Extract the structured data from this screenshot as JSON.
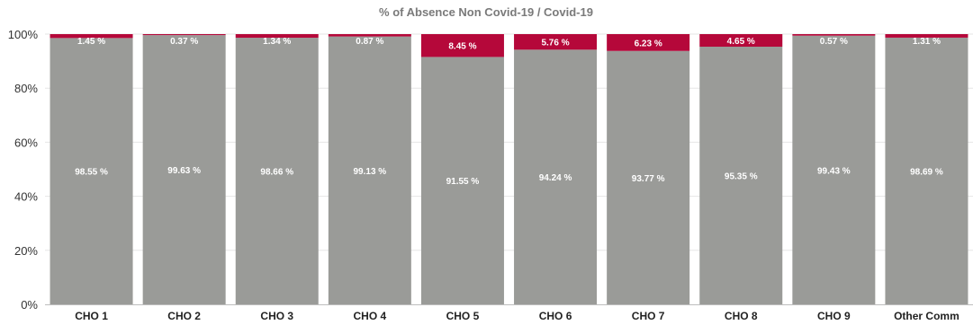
{
  "chart_data": {
    "type": "bar",
    "stacked": true,
    "title": "% of Absence Non Covid-19 / Covid-19",
    "xlabel": "",
    "ylabel": "",
    "ylim": [
      0,
      100
    ],
    "yticks": [
      "0%",
      "20%",
      "40%",
      "60%",
      "80%",
      "100%"
    ],
    "grid": true,
    "legend": "none",
    "categories": [
      "CHO 1",
      "CHO 2",
      "CHO 3",
      "CHO 4",
      "CHO 5",
      "CHO 6",
      "CHO 7",
      "CHO 8",
      "CHO 9",
      "Other Comm"
    ],
    "series": [
      {
        "color": "#9a9b98",
        "values": [
          98.55,
          99.63,
          98.66,
          99.13,
          91.55,
          94.24,
          93.77,
          95.35,
          99.43,
          98.69
        ],
        "labels": [
          "98.55 %",
          "99.63 %",
          "98.66 %",
          "99.13 %",
          "91.55 %",
          "94.24 %",
          "93.77 %",
          "95.35 %",
          "99.43 %",
          "98.69 %"
        ]
      },
      {
        "color": "#b5083a",
        "values": [
          1.45,
          0.37,
          1.34,
          0.87,
          8.45,
          5.76,
          6.23,
          4.65,
          0.57,
          1.31
        ],
        "labels": [
          "1.45 %",
          "0.37 %",
          "1.34 %",
          "0.87 %",
          "8.45 %",
          "5.76 %",
          "6.23 %",
          "4.65 %",
          "0.57 %",
          "1.31 %"
        ]
      }
    ]
  }
}
